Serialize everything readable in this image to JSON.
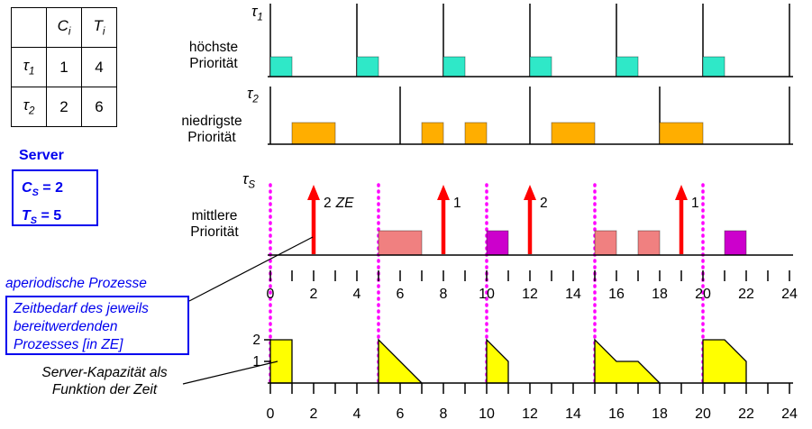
{
  "colors": {
    "tau1_box": "#2FE8C8",
    "tau2_box": "#FFAE00",
    "server_exec_a": "#F08080",
    "server_exec_b": "#CC00CC",
    "arrival_arrow": "#FF0000",
    "replenish_line": "#FF00FF",
    "capacity_fill": "#FFFF00",
    "accent_blue": "#0000EE"
  },
  "table": {
    "col_c": {
      "main": "C",
      "sub": "i"
    },
    "col_t": {
      "main": "T",
      "sub": "i"
    },
    "rows": [
      {
        "task": {
          "main": "τ",
          "sub": "1"
        },
        "c": "1",
        "t": "4"
      },
      {
        "task": {
          "main": "τ",
          "sub": "2"
        },
        "c": "2",
        "t": "6"
      }
    ]
  },
  "server": {
    "title": "Server",
    "c": {
      "main": "C",
      "sub": "S",
      "rest": " = 2"
    },
    "t": {
      "main": "T",
      "sub": "S",
      "rest": " = 5"
    }
  },
  "annotations": {
    "aperiodic": "aperiodische Prozesse",
    "zeitbedarf": "Zeitbedarf des jeweils bereitwerdenden Prozesses [in ZE]",
    "server_capacity": "Server-Kapazität als Funktion der Zeit"
  },
  "row_labels": {
    "tau1": {
      "main": "τ",
      "sub": "1"
    },
    "tau1_priority": {
      "line1": "höchste",
      "line2": "Priorität"
    },
    "tau2": {
      "main": "τ",
      "sub": "2"
    },
    "tau2_priority": {
      "line1": "niedrigste",
      "line2": "Priorität"
    },
    "tauS": {
      "main": "τ",
      "sub": "S"
    },
    "tauS_priority": {
      "line1": "mittlere",
      "line2": "Priorität"
    }
  },
  "axis": {
    "numbers": [
      0,
      2,
      4,
      6,
      8,
      10,
      12,
      14,
      16,
      18,
      20,
      22,
      24
    ]
  },
  "capacity_axis": {
    "labels": [
      {
        "value": "2",
        "level": 2
      },
      {
        "value": "1",
        "level": 1
      }
    ]
  },
  "schedule": {
    "tau1": {
      "period": 4,
      "releases": [
        0,
        4,
        8,
        12,
        16,
        20,
        24
      ],
      "executions": [
        [
          0,
          1
        ],
        [
          4,
          5
        ],
        [
          8,
          9
        ],
        [
          12,
          13
        ],
        [
          16,
          17
        ],
        [
          20,
          21
        ]
      ]
    },
    "tau2": {
      "period": 6,
      "releases": [
        0,
        6,
        12,
        18,
        24
      ],
      "executions": [
        [
          1,
          3
        ],
        [
          7,
          8
        ],
        [
          9,
          10
        ],
        [
          13,
          15
        ],
        [
          18,
          20
        ]
      ]
    },
    "server": {
      "replenishments": [
        0,
        5,
        10,
        15,
        20
      ],
      "arrivals": [
        {
          "t": 2,
          "amount": "2",
          "unit": "ZE"
        },
        {
          "t": 8,
          "amount": "1",
          "unit": ""
        },
        {
          "t": 12,
          "amount": "2",
          "unit": ""
        },
        {
          "t": 19,
          "amount": "1",
          "unit": ""
        }
      ],
      "executions": [
        {
          "from": 5,
          "to": 7,
          "color": "a"
        },
        {
          "from": 10,
          "to": 11,
          "color": "b"
        },
        {
          "from": 15,
          "to": 16,
          "color": "a"
        },
        {
          "from": 17,
          "to": 18,
          "color": "a"
        },
        {
          "from": 21,
          "to": 22,
          "color": "b"
        }
      ]
    },
    "capacity_shapes": [
      [
        [
          0,
          0
        ],
        [
          0,
          2
        ],
        [
          1,
          2
        ],
        [
          1,
          0
        ]
      ],
      [
        [
          5,
          0
        ],
        [
          5,
          2
        ],
        [
          7,
          0
        ]
      ],
      [
        [
          10,
          0
        ],
        [
          10,
          2
        ],
        [
          11,
          1
        ],
        [
          11,
          0
        ]
      ],
      [
        [
          15,
          0
        ],
        [
          15,
          2
        ],
        [
          16,
          1
        ],
        [
          17,
          1
        ],
        [
          18,
          0
        ]
      ],
      [
        [
          20,
          0
        ],
        [
          20,
          2
        ],
        [
          21,
          2
        ],
        [
          22,
          1
        ],
        [
          22,
          0
        ]
      ]
    ]
  }
}
